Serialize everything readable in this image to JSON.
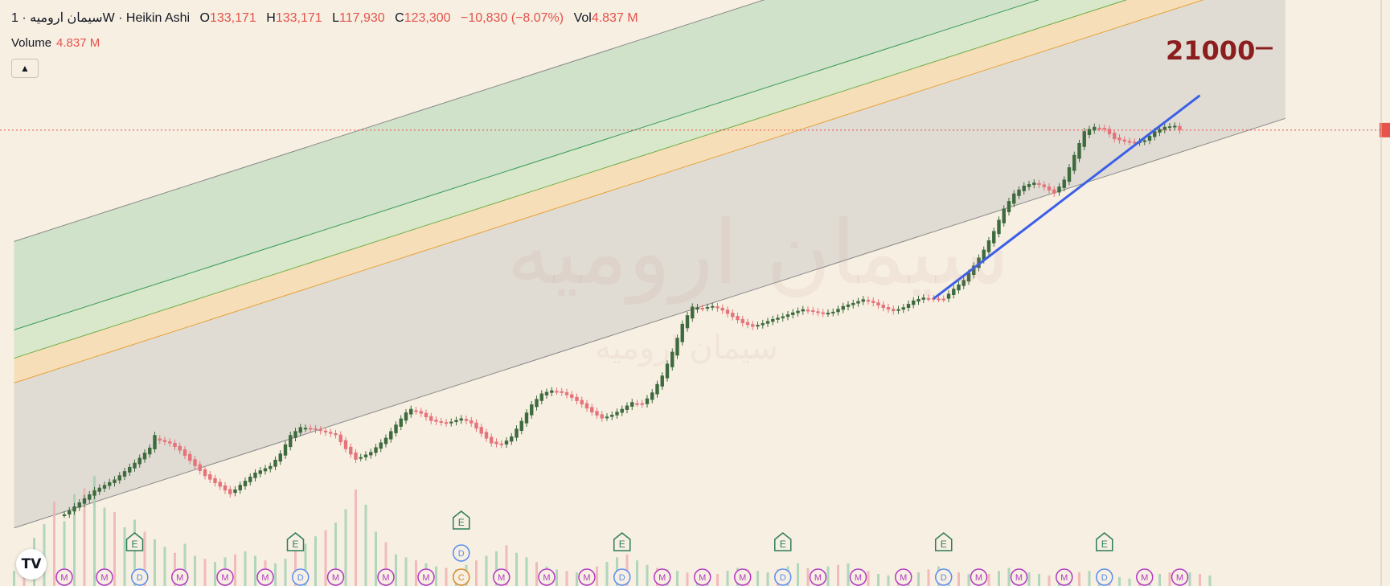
{
  "header": {
    "symbol": "سیمان ارومیه",
    "interval": "1W",
    "chart_style": "Heikin Ashi",
    "open_label": "O",
    "open": "133,171",
    "high_label": "H",
    "high": "133,171",
    "low_label": "L",
    "low": "117,930",
    "close_label": "C",
    "close": "123,300",
    "change": "−10,830 (−8.07%)",
    "vol_label": "Vol",
    "vol": "4.837 M"
  },
  "volume_pane": {
    "label": "Volume",
    "value": "4.837 M"
  },
  "collapse_icon": "chevron-up-icon",
  "annotation": {
    "text": "21000"
  },
  "watermark": {
    "big": "سیمان ارومیه",
    "small": "سیمان ارومیه"
  },
  "logo_text": "TV",
  "colors": {
    "background": "#f6efe2",
    "up_candle": "#3e6a3e",
    "down_candle": "#e5737a",
    "trendline": "#3c5fe8",
    "target_text": "#8b1e1e",
    "current_price_line": "#e5534b",
    "zone_green": "#c9dfc5",
    "zone_orange": "#f6dcb0",
    "zone_grey": "#dcd8d0"
  },
  "chart_data": {
    "type": "candlestick",
    "title": "سیمان ارومیه · 1W · Heikin Ashi",
    "price_scale": "log",
    "x": "weeks",
    "close_path": [
      [
        0,
        7.8
      ],
      [
        6,
        9.0
      ],
      [
        10,
        9.6
      ],
      [
        14,
        10.6
      ],
      [
        17,
        11.6
      ],
      [
        18,
        12.5
      ],
      [
        19,
        12.1
      ],
      [
        21,
        11.9
      ],
      [
        23,
        11.4
      ],
      [
        26,
        10.4
      ],
      [
        28,
        9.8
      ],
      [
        31,
        9.2
      ],
      [
        33,
        8.8
      ],
      [
        35,
        9.3
      ],
      [
        38,
        10.0
      ],
      [
        41,
        10.4
      ],
      [
        43,
        11.2
      ],
      [
        45,
        12.5
      ],
      [
        47,
        13.1
      ],
      [
        49,
        13.0
      ],
      [
        51,
        12.8
      ],
      [
        54,
        12.5
      ],
      [
        56,
        11.5
      ],
      [
        58,
        10.8
      ],
      [
        61,
        11.3
      ],
      [
        64,
        12.3
      ],
      [
        66,
        13.3
      ],
      [
        68,
        14.3
      ],
      [
        69,
        14.6
      ],
      [
        71,
        14.2
      ],
      [
        73,
        13.6
      ],
      [
        76,
        13.4
      ],
      [
        79,
        13.8
      ],
      [
        81,
        13.4
      ],
      [
        83,
        12.6
      ],
      [
        85,
        11.9
      ],
      [
        87,
        11.8
      ],
      [
        89,
        12.4
      ],
      [
        91,
        13.6
      ],
      [
        93,
        15.0
      ],
      [
        95,
        16.0
      ],
      [
        97,
        16.3
      ],
      [
        99,
        16.1
      ],
      [
        101,
        15.6
      ],
      [
        103,
        15.0
      ],
      [
        105,
        14.3
      ],
      [
        107,
        13.8
      ],
      [
        109,
        14.1
      ],
      [
        111,
        14.6
      ],
      [
        113,
        15.2
      ],
      [
        115,
        15.0
      ],
      [
        117,
        16.1
      ],
      [
        119,
        17.8
      ],
      [
        121,
        20.5
      ],
      [
        123,
        24.2
      ],
      [
        125,
        26.8
      ],
      [
        127,
        26.6
      ],
      [
        129,
        26.9
      ],
      [
        131,
        26.2
      ],
      [
        133,
        25.2
      ],
      [
        135,
        24.3
      ],
      [
        137,
        23.8
      ],
      [
        139,
        24.3
      ],
      [
        141,
        24.9
      ],
      [
        143,
        25.3
      ],
      [
        145,
        25.9
      ],
      [
        147,
        26.4
      ],
      [
        149,
        26.0
      ],
      [
        151,
        25.7
      ],
      [
        153,
        26.0
      ],
      [
        155,
        26.9
      ],
      [
        157,
        27.4
      ],
      [
        159,
        28.0
      ],
      [
        161,
        27.4
      ],
      [
        163,
        26.6
      ],
      [
        165,
        26.1
      ],
      [
        167,
        26.7
      ],
      [
        169,
        27.8
      ],
      [
        171,
        28.3
      ],
      [
        173,
        28.1
      ],
      [
        175,
        28.1
      ],
      [
        177,
        29.8
      ],
      [
        179,
        31.4
      ],
      [
        181,
        34.2
      ],
      [
        183,
        37.6
      ],
      [
        185,
        42.0
      ],
      [
        187,
        48.0
      ],
      [
        189,
        52.5
      ],
      [
        191,
        55.0
      ],
      [
        193,
        56.0
      ],
      [
        195,
        54.5
      ],
      [
        197,
        52.5
      ],
      [
        199,
        57.0
      ],
      [
        201,
        66.0
      ],
      [
        203,
        76.0
      ],
      [
        205,
        78.0
      ],
      [
        207,
        77.0
      ],
      [
        209,
        72.5
      ],
      [
        211,
        71.5
      ],
      [
        213,
        71.0
      ],
      [
        215,
        72.0
      ],
      [
        217,
        76.0
      ],
      [
        219,
        78.0
      ],
      [
        221,
        78.5
      ],
      [
        222,
        76.5
      ]
    ],
    "regression_channel": {
      "start_week": -10,
      "end_week": 243,
      "start_price": 7.2,
      "end_price": 82,
      "lines": [
        {
          "name": "upper_outer",
          "offset": 0.81
        },
        {
          "name": "upper_mid",
          "offset": 0.56
        },
        {
          "name": "median",
          "offset": 0.48
        },
        {
          "name": "lower_mid",
          "offset": 0.41
        },
        {
          "name": "lower_outer",
          "offset": 0.0
        }
      ]
    },
    "trendline": {
      "from": [
        173,
        28.1
      ],
      "to": [
        226,
        94
      ]
    },
    "target_level": {
      "label": "21000"
    },
    "current_price": 76.5,
    "volume": {
      "values": [
        1.0,
        1.6,
        3.2,
        4.1,
        5.6,
        4.3,
        6.1,
        6.5,
        7.3,
        5.2,
        4.9,
        3.9,
        4.4,
        3.6,
        3.1,
        2.6,
        2.2,
        2.8,
        2.0,
        1.8,
        1.6,
        1.9,
        2.1,
        2.3,
        2.0,
        1.7,
        1.5,
        1.8,
        2.4,
        2.8,
        3.3,
        3.7,
        4.2,
        5.1,
        6.4,
        5.4,
        3.6,
        2.9,
        2.1,
        1.9,
        1.7,
        1.5,
        1.3,
        1.2,
        1.1,
        1.4,
        1.7,
        2.0,
        2.3,
        2.7,
        2.2,
        1.9,
        1.6,
        1.3,
        1.1,
        1.0,
        0.9,
        1.0,
        1.3,
        1.6,
        1.9,
        2.1,
        1.7,
        1.4,
        1.2,
        1.1,
        1.0,
        0.9,
        0.8,
        0.7,
        0.8,
        1.0,
        1.2,
        1.1,
        1.0,
        0.9,
        1.1,
        1.3,
        1.5,
        1.2,
        1.1,
        1.3,
        1.4,
        1.5,
        1.1,
        1.0,
        0.8,
        0.7,
        0.6,
        0.7,
        0.9,
        1.1,
        1.3,
        1.1,
        0.9,
        0.8,
        0.7,
        0.8,
        1.0,
        1.2,
        1.0,
        0.9,
        0.8,
        0.7,
        0.7,
        0.8,
        0.9,
        1.0,
        0.8,
        0.7,
        0.6,
        0.5,
        0.6,
        0.7,
        0.8,
        0.9,
        1.0,
        0.9,
        0.8,
        0.7
      ]
    },
    "event_markers": [
      {
        "type": "E",
        "week": 14
      },
      {
        "type": "E",
        "week": 46
      },
      {
        "type": "E",
        "week": 79
      },
      {
        "type": "E",
        "week": 111
      },
      {
        "type": "E",
        "week": 143
      },
      {
        "type": "E",
        "week": 175
      },
      {
        "type": "E",
        "week": 207
      },
      {
        "type": "D",
        "week": 15
      },
      {
        "type": "D",
        "week": 47
      },
      {
        "type": "D",
        "week": 79
      },
      {
        "type": "D",
        "week": 111
      },
      {
        "type": "D",
        "week": 143
      },
      {
        "type": "D",
        "week": 175
      },
      {
        "type": "D",
        "week": 207
      },
      {
        "type": "C",
        "week": 79
      },
      {
        "type": "M",
        "week": 0
      },
      {
        "type": "M",
        "week": 8
      },
      {
        "type": "M",
        "week": 23
      },
      {
        "type": "M",
        "week": 32
      },
      {
        "type": "M",
        "week": 40
      },
      {
        "type": "M",
        "week": 54
      },
      {
        "type": "M",
        "week": 64
      },
      {
        "type": "M",
        "week": 72
      },
      {
        "type": "M",
        "week": 87
      },
      {
        "type": "M",
        "week": 96
      },
      {
        "type": "M",
        "week": 104
      },
      {
        "type": "M",
        "week": 119
      },
      {
        "type": "M",
        "week": 127
      },
      {
        "type": "M",
        "week": 135
      },
      {
        "type": "M",
        "week": 150
      },
      {
        "type": "M",
        "week": 158
      },
      {
        "type": "M",
        "week": 167
      },
      {
        "type": "M",
        "week": 182
      },
      {
        "type": "M",
        "week": 190
      },
      {
        "type": "M",
        "week": 199
      },
      {
        "type": "M",
        "week": 215
      },
      {
        "type": "M",
        "week": 222
      }
    ]
  }
}
